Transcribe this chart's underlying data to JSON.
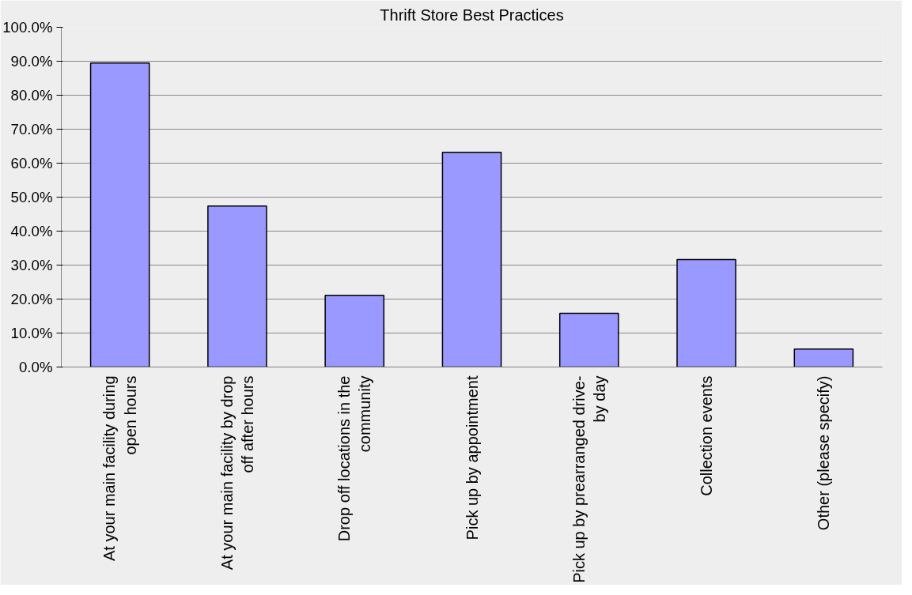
{
  "chart_data": {
    "type": "bar",
    "title": "Thrift Store Best Practices",
    "categories": [
      "At your main facility during open hours",
      "At your main facility by drop off after hours",
      "Drop off locations in the community",
      "Pick up by appointment",
      "Pick up by prearranged drive-by day",
      "Collection events",
      "Other (please specify)"
    ],
    "values": [
      89.5,
      47.4,
      21.1,
      63.2,
      15.8,
      31.6,
      5.3
    ],
    "color": "#9999ff",
    "ylim": [
      0,
      100
    ],
    "yticks": [
      {
        "value": 0,
        "label": "0.0%"
      },
      {
        "value": 10,
        "label": "10.0%"
      },
      {
        "value": 20,
        "label": "20.0%"
      },
      {
        "value": 30,
        "label": "30.0%"
      },
      {
        "value": 40,
        "label": "40.0%"
      },
      {
        "value": 50,
        "label": "50.0%"
      },
      {
        "value": 60,
        "label": "60.0%"
      },
      {
        "value": 70,
        "label": "70.0%"
      },
      {
        "value": 80,
        "label": "80.0%"
      },
      {
        "value": 90,
        "label": "90.0%"
      },
      {
        "value": 100,
        "label": "100.0%"
      }
    ],
    "grid": "y"
  }
}
